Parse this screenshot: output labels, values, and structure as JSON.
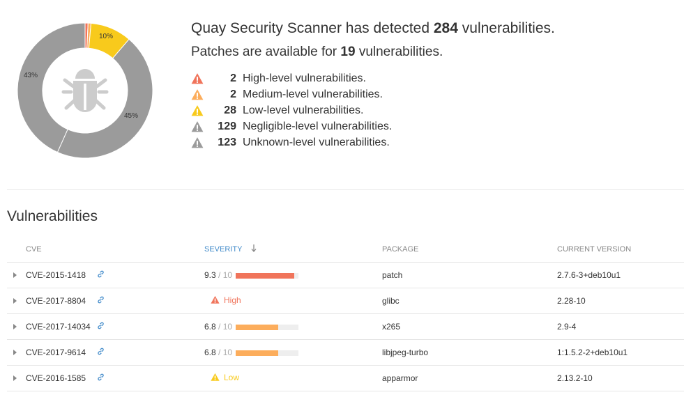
{
  "colors": {
    "high": "#f0745b",
    "medium": "#fcad5c",
    "low": "#f8ca1c",
    "negligible": "#9b9b9b",
    "unknown": "#9b9b9b",
    "link": "#428bca",
    "bug_icon": "#ccc"
  },
  "chart_data": {
    "type": "pie",
    "slices": [
      {
        "label": "High",
        "value": 2,
        "color": "#f0745b"
      },
      {
        "label": "Medium",
        "value": 2,
        "color": "#fcad5c"
      },
      {
        "label": "Low",
        "value": 28,
        "color": "#f8ca1c"
      },
      {
        "label": "Negligible",
        "value": 129,
        "color": "#9b9b9b"
      },
      {
        "label": "Unknown",
        "value": 123,
        "color": "#9b9b9b"
      }
    ],
    "percent_labels": [
      "10%",
      "45%",
      "43%"
    ],
    "center_icon": "bug-icon"
  },
  "summary": {
    "headline_prefix": "Quay Security Scanner has detected",
    "total": "284",
    "headline_suffix": "vulnerabilities.",
    "patch_prefix": "Patches are available for",
    "patch_count": "19",
    "patch_suffix": "vulnerabilities.",
    "levels": [
      {
        "icon": "warning-icon",
        "color": "#f0745b",
        "count": "2",
        "label": "High-level vulnerabilities."
      },
      {
        "icon": "warning-icon",
        "color": "#fcad5c",
        "count": "2",
        "label": "Medium-level vulnerabilities."
      },
      {
        "icon": "warning-icon",
        "color": "#f8ca1c",
        "count": "28",
        "label": "Low-level vulnerabilities."
      },
      {
        "icon": "warning-icon",
        "color": "#9b9b9b",
        "count": "129",
        "label": "Negligible-level vulnerabilities."
      },
      {
        "icon": "warning-icon",
        "color": "#9b9b9b",
        "count": "123",
        "label": "Unknown-level vulnerabilities."
      }
    ]
  },
  "vulnerabilities": {
    "title": "Vulnerabilities",
    "columns": [
      "CVE",
      "SEVERITY",
      "PACKAGE",
      "CURRENT VERSION"
    ],
    "sort_icon": "arrow-down-icon",
    "rows": [
      {
        "cve": "CVE-2015-1418",
        "score": "9.3",
        "of": "/ 10",
        "fill": 0.93,
        "bar_color": "#f0745b",
        "severity_label": "",
        "package": "patch",
        "version": "2.7.6-3+deb10u1"
      },
      {
        "cve": "CVE-2017-8804",
        "score": "",
        "of": "",
        "fill": null,
        "bar_color": "#f0745b",
        "severity_label": "High",
        "package": "glibc",
        "version": "2.28-10"
      },
      {
        "cve": "CVE-2017-14034",
        "score": "6.8",
        "of": "/ 10",
        "fill": 0.68,
        "bar_color": "#fcad5c",
        "severity_label": "",
        "package": "x265",
        "version": "2.9-4"
      },
      {
        "cve": "CVE-2017-9614",
        "score": "6.8",
        "of": "/ 10",
        "fill": 0.68,
        "bar_color": "#fcad5c",
        "severity_label": "",
        "package": "libjpeg-turbo",
        "version": "1:1.5.2-2+deb10u1"
      },
      {
        "cve": "CVE-2016-1585",
        "score": "",
        "of": "",
        "fill": null,
        "bar_color": "#f8ca1c",
        "severity_label": "Low",
        "package": "apparmor",
        "version": "2.13.2-10"
      }
    ]
  }
}
